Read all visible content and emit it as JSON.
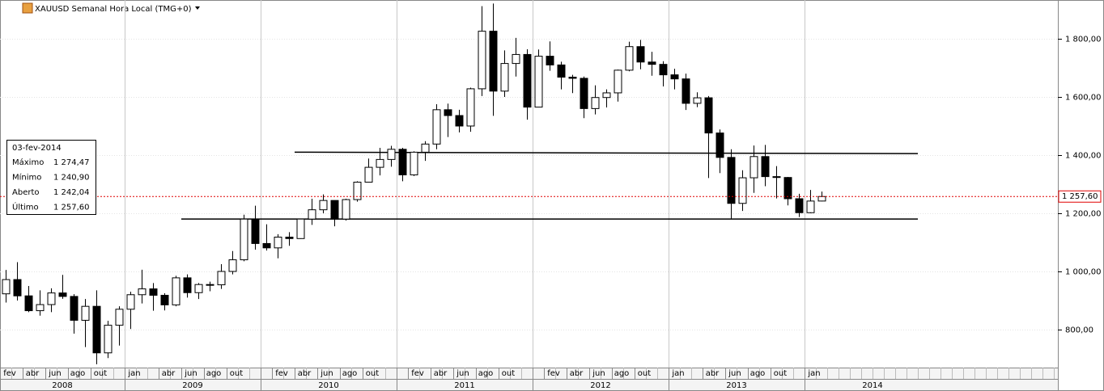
{
  "chart_data": {
    "type": "candlestick",
    "title": "XAUUSD Semanal Hora Local (TMG+0)",
    "up_color": "#ffffff",
    "down_color": "#000000",
    "wick_color": "#000000",
    "grid": true,
    "x": [
      "2008-02",
      "2008-03",
      "2008-04",
      "2008-05",
      "2008-06",
      "2008-07",
      "2008-08",
      "2008-09",
      "2008-10",
      "2008-11",
      "2008-12",
      "2009-01",
      "2009-02",
      "2009-03",
      "2009-04",
      "2009-05",
      "2009-06",
      "2009-07",
      "2009-08",
      "2009-09",
      "2009-10",
      "2009-11",
      "2009-12",
      "2010-01",
      "2010-02",
      "2010-03",
      "2010-04",
      "2010-05",
      "2010-06",
      "2010-07",
      "2010-08",
      "2010-09",
      "2010-10",
      "2010-11",
      "2010-12",
      "2011-01",
      "2011-02",
      "2011-03",
      "2011-04",
      "2011-05",
      "2011-06",
      "2011-07",
      "2011-08",
      "2011-09",
      "2011-10",
      "2011-11",
      "2011-12",
      "2012-01",
      "2012-02",
      "2012-03",
      "2012-04",
      "2012-05",
      "2012-06",
      "2012-07",
      "2012-08",
      "2012-09",
      "2012-10",
      "2012-11",
      "2012-12",
      "2013-01",
      "2013-02",
      "2013-03",
      "2013-04",
      "2013-05",
      "2013-06",
      "2013-07",
      "2013-08",
      "2013-09",
      "2013-10",
      "2013-11",
      "2013-12",
      "2014-01",
      "2014-02"
    ],
    "open": [
      923,
      972,
      916,
      865,
      886,
      926,
      914,
      832,
      880,
      720,
      815,
      870,
      920,
      940,
      918,
      885,
      978,
      927,
      955,
      954,
      1000,
      1040,
      1180,
      1096,
      1081,
      1118,
      1113,
      1180,
      1212,
      1244,
      1180,
      1247,
      1307,
      1358,
      1385,
      1420,
      1332,
      1410,
      1438,
      1556,
      1536,
      1500,
      1628,
      1826,
      1620,
      1715,
      1746,
      1565,
      1740,
      1710,
      1668,
      1664,
      1560,
      1598,
      1614,
      1692,
      1773,
      1720,
      1712,
      1676,
      1662,
      1578,
      1597,
      1476,
      1392,
      1234,
      1322,
      1395,
      1326,
      1323,
      1250,
      1202,
      1242.04
    ],
    "high": [
      1005,
      1032,
      950,
      935,
      942,
      988,
      922,
      905,
      935,
      830,
      880,
      930,
      1006,
      960,
      925,
      985,
      990,
      960,
      965,
      1025,
      1070,
      1195,
      1226,
      1162,
      1128,
      1135,
      1182,
      1250,
      1265,
      1244,
      1250,
      1310,
      1388,
      1425,
      1432,
      1425,
      1413,
      1448,
      1575,
      1577,
      1556,
      1632,
      1912,
      1921,
      1760,
      1803,
      1764,
      1763,
      1791,
      1721,
      1676,
      1670,
      1640,
      1626,
      1694,
      1790,
      1796,
      1755,
      1723,
      1697,
      1680,
      1616,
      1603,
      1488,
      1420,
      1348,
      1433,
      1435,
      1362,
      1325,
      1267,
      1280,
      1274.47
    ],
    "low": [
      893,
      900,
      860,
      848,
      860,
      906,
      786,
      740,
      681,
      702,
      745,
      802,
      890,
      865,
      866,
      880,
      910,
      905,
      932,
      940,
      990,
      1035,
      1075,
      1072,
      1045,
      1088,
      1112,
      1160,
      1200,
      1155,
      1175,
      1240,
      1315,
      1330,
      1360,
      1310,
      1328,
      1380,
      1420,
      1462,
      1478,
      1480,
      1603,
      1535,
      1600,
      1670,
      1522,
      1564,
      1690,
      1626,
      1613,
      1527,
      1540,
      1564,
      1584,
      1688,
      1695,
      1673,
      1636,
      1626,
      1555,
      1565,
      1321,
      1338,
      1180,
      1208,
      1270,
      1293,
      1251,
      1227,
      1187,
      1200,
      1240.9
    ],
    "close": [
      972,
      916,
      865,
      886,
      926,
      914,
      832,
      880,
      720,
      815,
      870,
      920,
      940,
      918,
      885,
      978,
      927,
      955,
      954,
      1000,
      1040,
      1180,
      1096,
      1081,
      1118,
      1113,
      1180,
      1212,
      1244,
      1180,
      1247,
      1307,
      1358,
      1385,
      1420,
      1332,
      1410,
      1438,
      1556,
      1536,
      1500,
      1628,
      1826,
      1620,
      1715,
      1746,
      1565,
      1740,
      1710,
      1668,
      1664,
      1560,
      1598,
      1614,
      1692,
      1773,
      1720,
      1712,
      1676,
      1662,
      1578,
      1597,
      1476,
      1392,
      1234,
      1322,
      1395,
      1326,
      1323,
      1250,
      1202,
      1242,
      1257.6
    ],
    "xlim": [
      "2008-02",
      "2015-11"
    ],
    "ylim": [
      669.4,
      1933.3
    ],
    "yticks": [
      {
        "value": 800,
        "label": "800,00"
      },
      {
        "value": 1000,
        "label": "1 000,00"
      },
      {
        "value": 1200,
        "label": "1 200,00"
      },
      {
        "value": 1400,
        "label": "1 400,00"
      },
      {
        "value": 1600,
        "label": "1 600,00"
      },
      {
        "value": 1800,
        "label": "1 800,00"
      }
    ],
    "xticks": [
      {
        "value": "2008-02",
        "label": "fev"
      },
      {
        "value": "2008-04",
        "label": "abr"
      },
      {
        "value": "2008-06",
        "label": "jun"
      },
      {
        "value": "2008-08",
        "label": "ago"
      },
      {
        "value": "2008-10",
        "label": "out"
      },
      {
        "value": "2009-01",
        "label": "jan"
      },
      {
        "value": "2009-04",
        "label": "abr"
      },
      {
        "value": "2009-06",
        "label": "jun"
      },
      {
        "value": "2009-08",
        "label": "ago"
      },
      {
        "value": "2009-10",
        "label": "out"
      },
      {
        "value": "2010-02",
        "label": "fev"
      },
      {
        "value": "2010-04",
        "label": "abr"
      },
      {
        "value": "2010-06",
        "label": "jun"
      },
      {
        "value": "2010-08",
        "label": "ago"
      },
      {
        "value": "2010-10",
        "label": "out"
      },
      {
        "value": "2011-02",
        "label": "fev"
      },
      {
        "value": "2011-04",
        "label": "abr"
      },
      {
        "value": "2011-06",
        "label": "jun"
      },
      {
        "value": "2011-08",
        "label": "ago"
      },
      {
        "value": "2011-10",
        "label": "out"
      },
      {
        "value": "2012-02",
        "label": "fev"
      },
      {
        "value": "2012-04",
        "label": "abr"
      },
      {
        "value": "2012-06",
        "label": "jun"
      },
      {
        "value": "2012-08",
        "label": "ago"
      },
      {
        "value": "2012-10",
        "label": "out"
      },
      {
        "value": "2013-01",
        "label": "jan"
      },
      {
        "value": "2013-04",
        "label": "abr"
      },
      {
        "value": "2013-06",
        "label": "jun"
      },
      {
        "value": "2013-08",
        "label": "ago"
      },
      {
        "value": "2013-10",
        "label": "out"
      },
      {
        "value": "2014-01",
        "label": "jan"
      }
    ],
    "year_ticks": [
      "2008",
      "2009",
      "2010",
      "2011",
      "2012",
      "2013",
      "2014"
    ],
    "trend_lines": [
      {
        "x": [
          "2010-04",
          "2014-11"
        ],
        "values": [
          1410,
          1405
        ]
      },
      {
        "x": [
          "2009-06",
          "2014-11"
        ],
        "values": [
          1180,
          1180
        ]
      }
    ],
    "last_price": {
      "value": 1257.6,
      "label": "1 257,60"
    },
    "info_box": {
      "date": "03-fev-2014",
      "rows": [
        [
          "Máximo",
          "1 274,47"
        ],
        [
          "Mínimo",
          "1 240,90"
        ],
        [
          "Aberto",
          "1 242,04"
        ],
        [
          "Último",
          "1 257,60"
        ]
      ]
    }
  }
}
